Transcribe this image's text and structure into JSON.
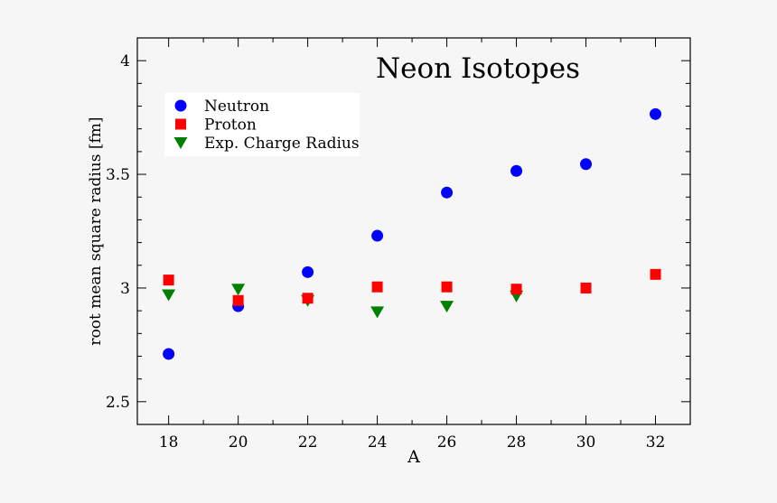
{
  "chart_data": {
    "type": "scatter",
    "title": "Neon Isotopes",
    "xlabel": "A",
    "ylabel": "root mean square radius [fm]",
    "xlim": [
      17.1,
      33.0
    ],
    "ylim": [
      2.4,
      4.1
    ],
    "xticks": [
      18,
      20,
      22,
      24,
      26,
      28,
      30,
      32
    ],
    "xtick_labels": [
      "18",
      "20",
      "22",
      "24",
      "26",
      "28",
      "30",
      "32"
    ],
    "yticks": [
      2.5,
      3,
      3.5,
      4
    ],
    "ytick_labels": [
      "2.5",
      "3",
      "3.5",
      "4"
    ],
    "grid": false,
    "legend_position": "top-left",
    "series": [
      {
        "name": "Neutron",
        "marker": "circle",
        "color": "#0000ff",
        "x": [
          18,
          20,
          22,
          24,
          26,
          28,
          30,
          32
        ],
        "y": [
          2.71,
          2.92,
          3.07,
          3.23,
          3.42,
          3.515,
          3.545,
          3.765
        ]
      },
      {
        "name": "Proton",
        "marker": "square",
        "color": "#ff0000",
        "x": [
          18,
          20,
          22,
          24,
          26,
          28,
          30,
          32
        ],
        "y": [
          3.035,
          2.945,
          2.955,
          3.005,
          3.005,
          2.995,
          3.0,
          3.06
        ]
      },
      {
        "name": "Exp. Charge Radius",
        "marker": "triangle-down",
        "color": "#008000",
        "x": [
          18,
          20,
          22,
          24,
          26,
          28
        ],
        "y": [
          2.97,
          2.995,
          2.945,
          2.895,
          2.92,
          2.965
        ]
      }
    ]
  }
}
